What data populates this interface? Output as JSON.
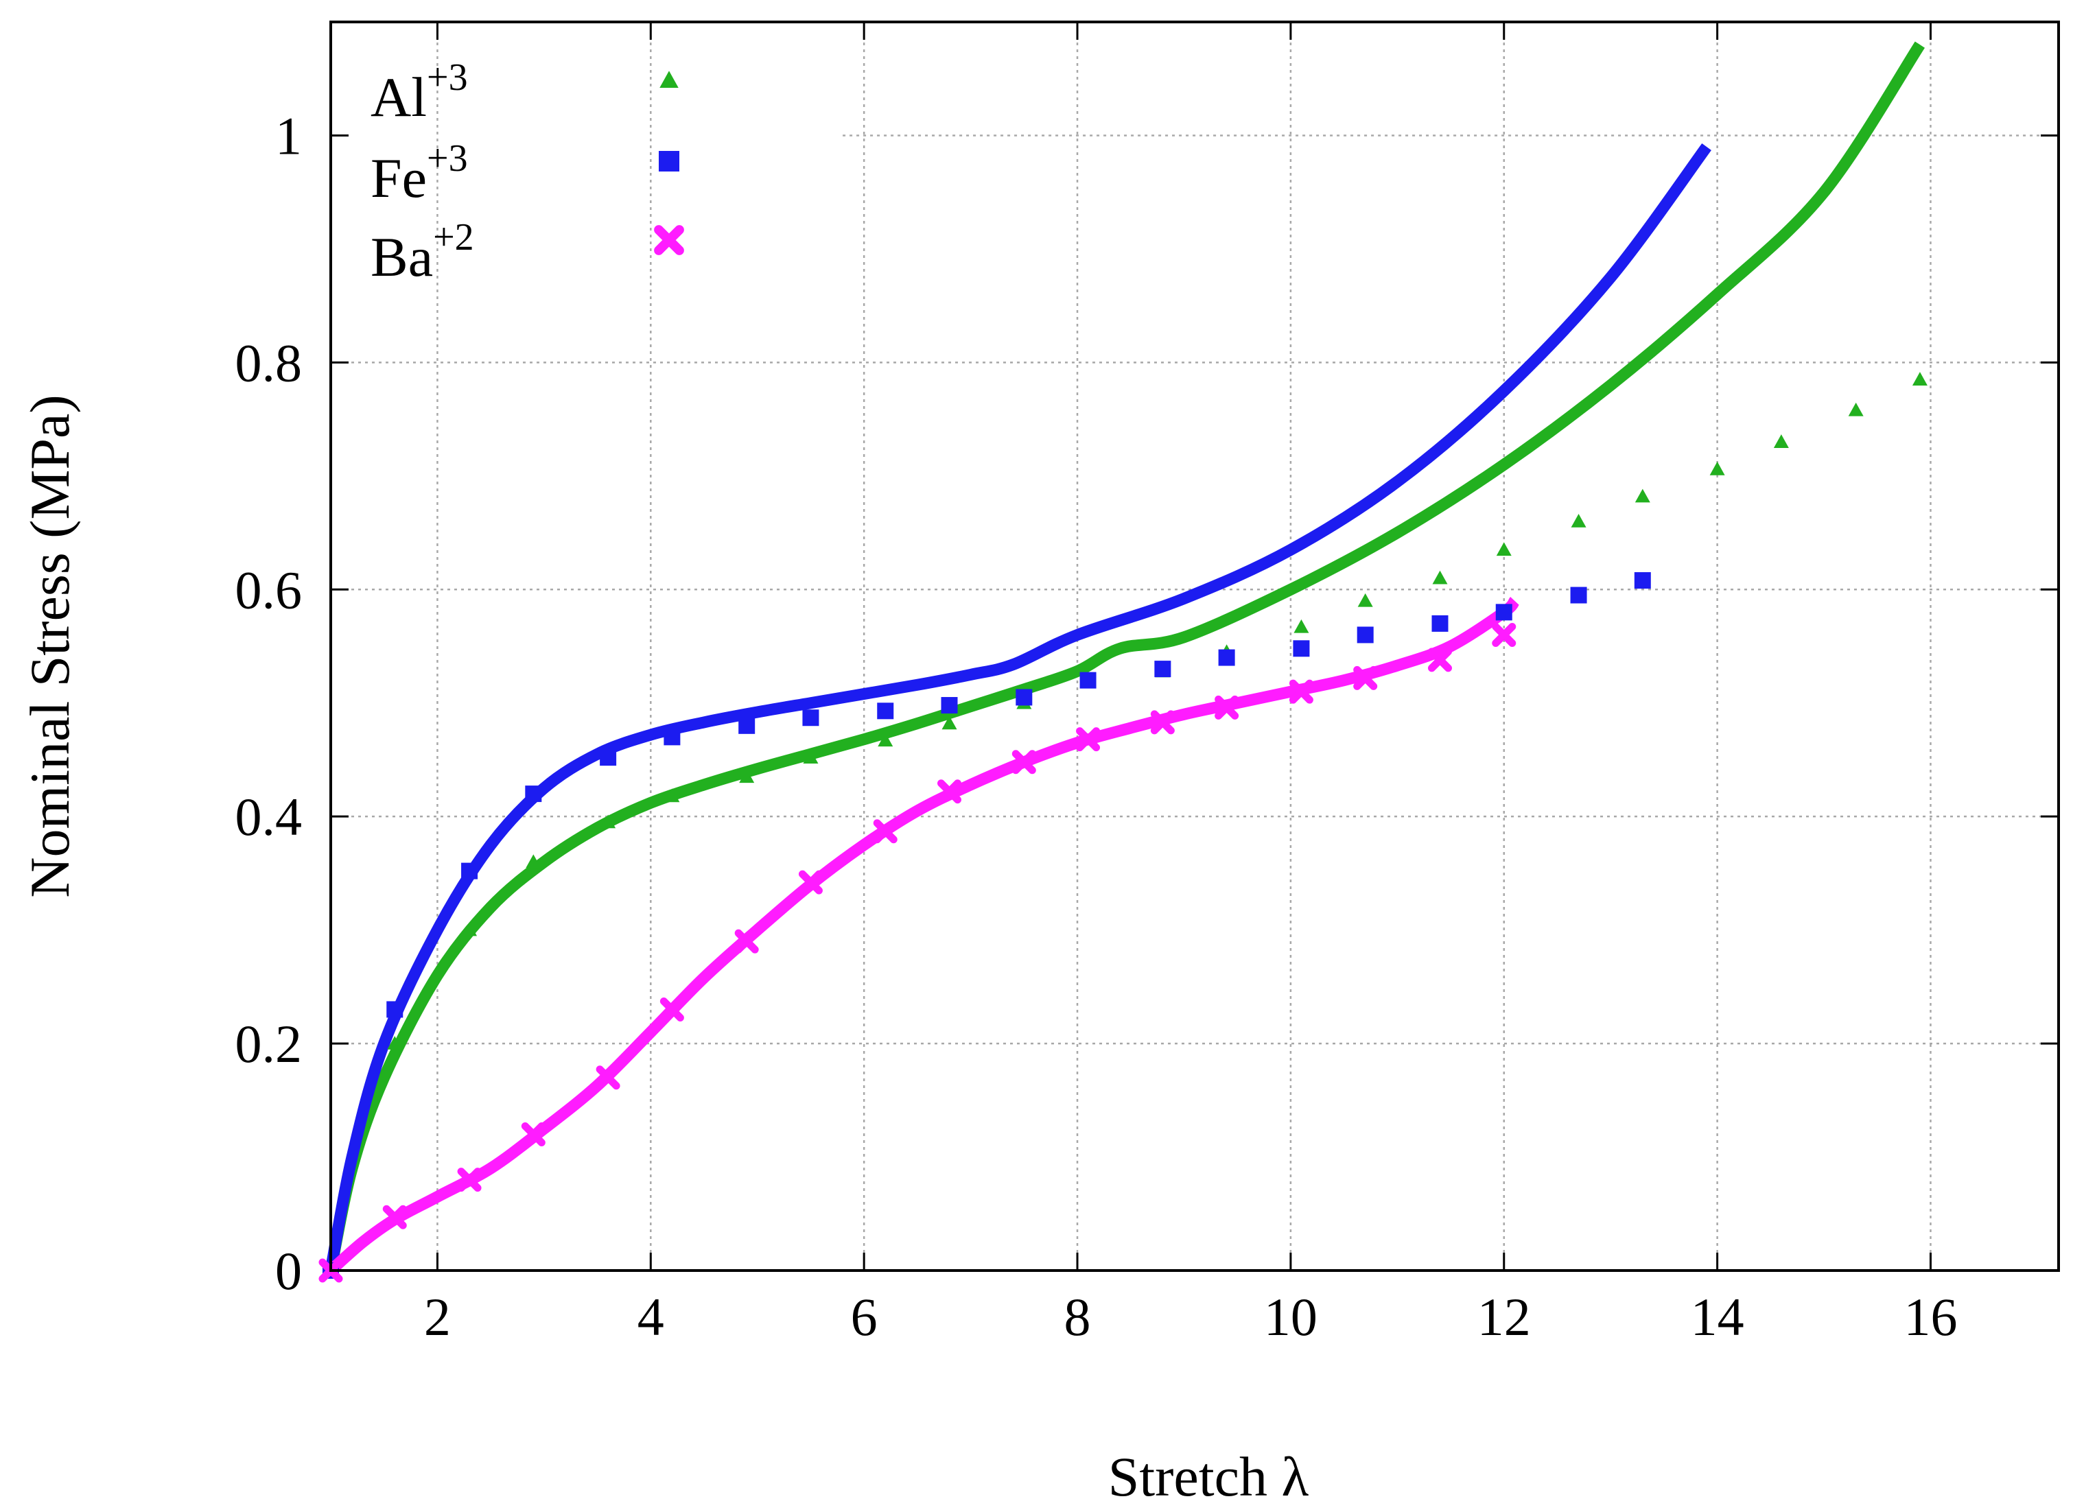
{
  "chart_data": {
    "type": "line",
    "title": "",
    "xlabel": "Stretch λ",
    "ylabel": "Nominal Stress (MPa)",
    "xlim": [
      1,
      17.2
    ],
    "ylim": [
      0,
      1.1
    ],
    "xticks": [
      2,
      4,
      6,
      8,
      10,
      12,
      14,
      16
    ],
    "yticks": [
      0,
      0.2,
      0.4,
      0.6,
      0.8,
      1
    ],
    "xtick_labels": [
      "2",
      "4",
      "6",
      "8",
      "10",
      "12",
      "14",
      "16"
    ],
    "ytick_labels": [
      "0",
      "0.2",
      "0.4",
      "0.6",
      "0.8",
      "1"
    ],
    "grid": true,
    "legend_position": "top-left",
    "series": [
      {
        "name": "Al",
        "sup": "+3",
        "color": "#22b01f",
        "marker": "triangle",
        "points": {
          "x": [
            1.0,
            1.6,
            2.3,
            2.9,
            3.6,
            4.2,
            4.9,
            5.5,
            6.2,
            6.8,
            7.5,
            8.1,
            8.8,
            9.4,
            10.1,
            10.7,
            11.4,
            12.0,
            12.7,
            13.3,
            14.0,
            14.6,
            15.3,
            15.9
          ],
          "y": [
            0.0,
            0.2,
            0.3,
            0.36,
            0.395,
            0.418,
            0.435,
            0.452,
            0.467,
            0.482,
            0.5,
            0.52,
            0.528,
            0.545,
            0.567,
            0.59,
            0.61,
            0.635,
            0.66,
            0.682,
            0.706,
            0.73,
            0.758,
            0.785
          ]
        },
        "fit": {
          "x": [
            1.0,
            1.2,
            1.5,
            2.0,
            2.5,
            3.0,
            3.5,
            4.0,
            4.5,
            5.0,
            5.5,
            6.0,
            6.5,
            7.0,
            7.5,
            8.0,
            8.4,
            9.0,
            10.0,
            11.0,
            12.0,
            13.0,
            14.0,
            15.0,
            15.9
          ],
          "y": [
            0.0,
            0.09,
            0.17,
            0.26,
            0.32,
            0.36,
            0.39,
            0.412,
            0.428,
            0.442,
            0.455,
            0.468,
            0.482,
            0.497,
            0.512,
            0.528,
            0.548,
            0.558,
            0.6,
            0.65,
            0.71,
            0.78,
            0.86,
            0.95,
            1.08
          ]
        }
      },
      {
        "name": "Fe",
        "sup": "+3",
        "color": "#1c1cf0",
        "marker": "square",
        "points": {
          "x": [
            1.0,
            1.6,
            2.3,
            2.9,
            3.6,
            4.2,
            4.9,
            5.5,
            6.2,
            6.8,
            7.5,
            8.1,
            8.8,
            9.4,
            10.1,
            10.7,
            11.4,
            12.0,
            12.7,
            13.3
          ],
          "y": [
            0.0,
            0.23,
            0.352,
            0.42,
            0.452,
            0.47,
            0.48,
            0.487,
            0.493,
            0.498,
            0.505,
            0.52,
            0.53,
            0.54,
            0.548,
            0.56,
            0.57,
            0.58,
            0.595,
            0.608
          ]
        },
        "fit": {
          "x": [
            1.0,
            1.2,
            1.5,
            2.0,
            2.5,
            3.0,
            3.5,
            4.0,
            4.5,
            5.0,
            5.5,
            6.0,
            6.5,
            7.0,
            7.4,
            8.0,
            9.0,
            10.0,
            11.0,
            12.0,
            13.0,
            13.9
          ],
          "y": [
            0.0,
            0.1,
            0.2,
            0.3,
            0.375,
            0.425,
            0.455,
            0.472,
            0.483,
            0.492,
            0.5,
            0.508,
            0.516,
            0.525,
            0.534,
            0.56,
            0.592,
            0.635,
            0.695,
            0.775,
            0.875,
            0.99
          ]
        }
      },
      {
        "name": "Ba",
        "sup": "+2",
        "color": "#ff1cff",
        "marker": "x",
        "points": {
          "x": [
            1.0,
            1.6,
            2.3,
            2.9,
            3.6,
            4.2,
            4.9,
            5.5,
            6.2,
            6.8,
            7.5,
            8.1,
            8.8,
            9.4,
            10.1,
            10.7,
            11.4,
            12.0
          ],
          "y": [
            0.0,
            0.047,
            0.08,
            0.12,
            0.17,
            0.23,
            0.29,
            0.342,
            0.387,
            0.422,
            0.448,
            0.468,
            0.483,
            0.496,
            0.51,
            0.522,
            0.538,
            0.56
          ]
        },
        "fit": {
          "x": [
            1.0,
            1.3,
            1.6,
            2.0,
            2.5,
            3.0,
            3.5,
            4.0,
            4.5,
            5.0,
            5.5,
            6.0,
            6.5,
            7.0,
            7.5,
            8.0,
            8.5,
            9.0,
            9.5,
            10.0,
            10.5,
            11.0,
            11.5,
            12.0,
            12.1
          ],
          "y": [
            0.0,
            0.025,
            0.045,
            0.065,
            0.09,
            0.125,
            0.163,
            0.21,
            0.258,
            0.3,
            0.34,
            0.375,
            0.405,
            0.428,
            0.448,
            0.465,
            0.478,
            0.49,
            0.5,
            0.51,
            0.52,
            0.533,
            0.55,
            0.58,
            0.59
          ]
        }
      }
    ]
  }
}
